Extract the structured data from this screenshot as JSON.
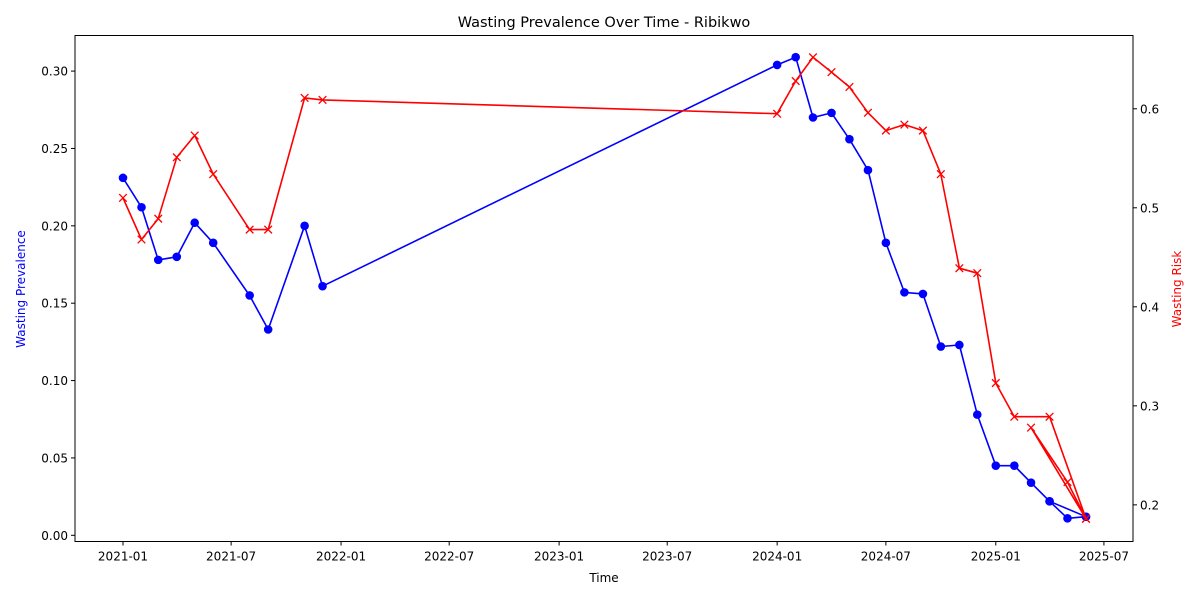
{
  "chart_data": {
    "type": "line",
    "title": "Wasting Prevalence Over Time - Ribikwo",
    "xlabel": "Time",
    "ylabel_left": "Wasting Prevalence",
    "ylabel_right": "Wasting Risk",
    "x_ticks": [
      "2021-01",
      "2021-07",
      "2022-01",
      "2022-07",
      "2023-01",
      "2023-07",
      "2024-01",
      "2024-07",
      "2025-01",
      "2025-07"
    ],
    "y_left_ticks": [
      "0.00",
      "0.05",
      "0.10",
      "0.15",
      "0.20",
      "0.25",
      "0.30"
    ],
    "y_right_ticks": [
      "0.2",
      "0.3",
      "0.4",
      "0.5",
      "0.6"
    ],
    "y_left_lim": [
      -0.004,
      0.323
    ],
    "y_right_lim": [
      0.163,
      0.674
    ],
    "grid": false,
    "colors": {
      "prevalence": "#0000ff",
      "risk": "#ff0000"
    },
    "series": [
      {
        "axis": "left",
        "marker": "circle",
        "x": [
          "2021-01-01",
          "2021-02-01",
          "2021-03-01",
          "2021-04-01",
          "2021-05-01",
          "2021-06-01",
          "2021-08-01",
          "2021-09-01",
          "2021-11-01",
          "2021-12-01",
          "2024-01-01",
          "2024-02-01",
          "2024-03-01",
          "2024-04-01",
          "2024-05-01",
          "2024-06-01",
          "2024-07-01",
          "2024-08-01",
          "2024-09-01",
          "2024-10-01",
          "2024-11-01",
          "2024-12-01",
          "2025-01-01",
          "2025-02-01",
          "2025-03-01",
          "2025-04-01",
          "2025-05-01",
          "2025-06-01",
          "2025-04-01",
          "2025-06-01"
        ],
        "values": [
          0.231,
          0.212,
          0.178,
          0.18,
          0.202,
          0.189,
          0.155,
          0.133,
          0.2,
          0.161,
          0.304,
          0.309,
          0.27,
          0.273,
          0.256,
          0.236,
          0.189,
          0.157,
          0.156,
          0.122,
          0.123,
          0.078,
          0.045,
          0.045,
          0.034,
          0.022,
          0.011,
          0.012,
          0.022,
          0.012
        ]
      },
      {
        "axis": "right",
        "marker": "x",
        "x": [
          "2021-01-01",
          "2021-02-01",
          "2021-03-01",
          "2021-04-01",
          "2021-05-01",
          "2021-06-01",
          "2021-08-01",
          "2021-09-01",
          "2021-11-01",
          "2021-12-01",
          "2024-01-01",
          "2024-02-01",
          "2024-03-01",
          "2024-04-01",
          "2024-05-01",
          "2024-06-01",
          "2024-07-01",
          "2024-08-01",
          "2024-09-01",
          "2024-10-01",
          "2024-11-01",
          "2024-12-01",
          "2025-01-01",
          "2025-02-01",
          "2025-04-01",
          "2025-06-01",
          "2025-03-01",
          "2025-05-01",
          "2025-06-01"
        ],
        "values": [
          0.51,
          0.468,
          0.489,
          0.551,
          0.573,
          0.534,
          0.478,
          0.478,
          0.611,
          0.609,
          0.595,
          0.628,
          0.652,
          0.637,
          0.622,
          0.596,
          0.578,
          0.584,
          0.578,
          0.534,
          0.439,
          0.434,
          0.323,
          0.289,
          0.289,
          0.186,
          0.278,
          0.223,
          0.186
        ]
      }
    ]
  }
}
